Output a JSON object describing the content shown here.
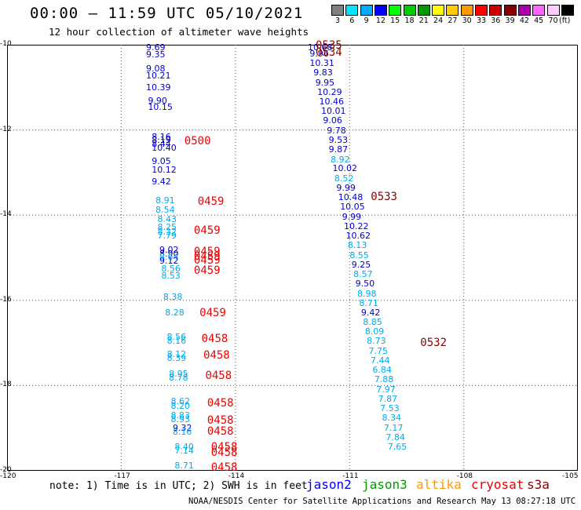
{
  "header": {
    "title": "00:00 – 11:59 UTC 05/10/2021",
    "subtitle": "12 hour collection of altimeter wave heights"
  },
  "colorbar": {
    "unit": "(ft)",
    "bins": [
      {
        "label": "3",
        "color": "#808080"
      },
      {
        "label": "6",
        "color": "#00e5ff"
      },
      {
        "label": "9",
        "color": "#00aaff"
      },
      {
        "label": "12",
        "color": "#0000ff"
      },
      {
        "label": "15",
        "color": "#00ff00"
      },
      {
        "label": "18",
        "color": "#00cc00"
      },
      {
        "label": "21",
        "color": "#009900"
      },
      {
        "label": "24",
        "color": "#ffff00"
      },
      {
        "label": "27",
        "color": "#ffcc00"
      },
      {
        "label": "30",
        "color": "#ff9900"
      },
      {
        "label": "33",
        "color": "#ff0000"
      },
      {
        "label": "36",
        "color": "#cc0000"
      },
      {
        "label": "39",
        "color": "#880000"
      },
      {
        "label": "42",
        "color": "#aa00aa"
      },
      {
        "label": "45",
        "color": "#ff66ff"
      },
      {
        "label": "70",
        "color": "#ffccff"
      },
      {
        "label": "",
        "color": "#000000"
      }
    ]
  },
  "axes": {
    "lon_ticks": [
      "-120",
      "-117",
      "-114",
      "-111",
      "-108",
      "-105"
    ],
    "lat_ticks": [
      "-10",
      "-12",
      "-14",
      "-16",
      "-18",
      "-20"
    ],
    "xlim": [
      -120,
      -105
    ],
    "ylim": [
      -20,
      -10
    ]
  },
  "observations": [
    {
      "lon": -116.1,
      "lat": -10.05,
      "v": "9.69",
      "sat": "jason2"
    },
    {
      "lon": -116.1,
      "lat": -10.22,
      "v": "9.35",
      "sat": "jason2"
    },
    {
      "lon": -116.1,
      "lat": -10.55,
      "v": "9.08",
      "sat": "jason2"
    },
    {
      "lon": -116.1,
      "lat": -10.72,
      "v": "10.21",
      "sat": "jason2"
    },
    {
      "lon": -116.1,
      "lat": -11.0,
      "v": "10.39",
      "sat": "jason2"
    },
    {
      "lon": -116.05,
      "lat": -11.3,
      "v": "9.90",
      "sat": "jason2"
    },
    {
      "lon": -116.05,
      "lat": -11.45,
      "v": "10.15",
      "sat": "jason2"
    },
    {
      "lon": -115.95,
      "lat": -12.15,
      "v": "8.16",
      "sat": "jason2"
    },
    {
      "lon": -115.95,
      "lat": -12.23,
      "v": "8.19",
      "sat": "jason2"
    },
    {
      "lon": -115.95,
      "lat": -12.32,
      "v": "8.44",
      "sat": "jason2"
    },
    {
      "lon": -115.95,
      "lat": -12.42,
      "v": "10.40",
      "sat": "jason2"
    },
    {
      "lon": -115.95,
      "lat": -12.73,
      "v": "9.05",
      "sat": "jason2"
    },
    {
      "lon": -115.95,
      "lat": -12.93,
      "v": "10.12",
      "sat": "jason2"
    },
    {
      "lon": -115.95,
      "lat": -13.2,
      "v": "9.42",
      "sat": "jason2"
    },
    {
      "lon": -115.85,
      "lat": -13.65,
      "v": "8.91",
      "sat": "jason3"
    },
    {
      "lon": -115.85,
      "lat": -13.87,
      "v": "8.54",
      "sat": "jason3"
    },
    {
      "lon": -115.8,
      "lat": -14.08,
      "v": "8.43",
      "sat": "jason3"
    },
    {
      "lon": -115.8,
      "lat": -14.28,
      "v": "8.25",
      "sat": "jason3"
    },
    {
      "lon": -115.8,
      "lat": -14.38,
      "v": "8.32",
      "sat": "jason3"
    },
    {
      "lon": -115.8,
      "lat": -14.47,
      "v": "7.79",
      "sat": "jason3"
    },
    {
      "lon": -115.75,
      "lat": -14.8,
      "v": "9.02",
      "sat": "jason2"
    },
    {
      "lon": -115.75,
      "lat": -14.9,
      "v": "8.90",
      "sat": "jason2"
    },
    {
      "lon": -115.75,
      "lat": -14.98,
      "v": "8.64",
      "sat": "jason3"
    },
    {
      "lon": -115.75,
      "lat": -15.07,
      "v": "9.12",
      "sat": "jason2"
    },
    {
      "lon": -115.7,
      "lat": -15.25,
      "v": "8.56",
      "sat": "jason3"
    },
    {
      "lon": -115.7,
      "lat": -15.42,
      "v": "8.53",
      "sat": "jason3"
    },
    {
      "lon": -115.65,
      "lat": -15.92,
      "v": "8.38",
      "sat": "jason3"
    },
    {
      "lon": -115.6,
      "lat": -16.28,
      "v": "8.28",
      "sat": "jason3"
    },
    {
      "lon": -115.55,
      "lat": -16.85,
      "v": "8.56",
      "sat": "jason3"
    },
    {
      "lon": -115.55,
      "lat": -16.94,
      "v": "8.16",
      "sat": "jason3"
    },
    {
      "lon": -115.55,
      "lat": -17.25,
      "v": "8.12",
      "sat": "jason3"
    },
    {
      "lon": -115.55,
      "lat": -17.34,
      "v": "8.39",
      "sat": "jason3"
    },
    {
      "lon": -115.5,
      "lat": -17.72,
      "v": "8.95",
      "sat": "jason3"
    },
    {
      "lon": -115.5,
      "lat": -17.8,
      "v": "8.78",
      "sat": "jason3"
    },
    {
      "lon": -115.45,
      "lat": -18.37,
      "v": "8.62",
      "sat": "jason3"
    },
    {
      "lon": -115.45,
      "lat": -18.47,
      "v": "8.20",
      "sat": "jason3"
    },
    {
      "lon": -115.45,
      "lat": -18.7,
      "v": "8.83",
      "sat": "jason3"
    },
    {
      "lon": -115.45,
      "lat": -18.78,
      "v": "8.93",
      "sat": "jason3"
    },
    {
      "lon": -115.4,
      "lat": -18.98,
      "v": "9.32",
      "sat": "jason2"
    },
    {
      "lon": -115.4,
      "lat": -19.08,
      "v": "8.16",
      "sat": "jason3"
    },
    {
      "lon": -115.35,
      "lat": -19.43,
      "v": "8.40",
      "sat": "jason3"
    },
    {
      "lon": -115.35,
      "lat": -19.53,
      "v": "7.14",
      "sat": "jason3"
    },
    {
      "lon": -115.35,
      "lat": -19.87,
      "v": "8.71",
      "sat": "jason3"
    },
    {
      "lon": -111.85,
      "lat": -10.05,
      "v": "10.68",
      "sat": "jason2"
    },
    {
      "lon": -111.8,
      "lat": -10.2,
      "v": "9.96",
      "sat": "jason2"
    },
    {
      "lon": -111.8,
      "lat": -10.43,
      "v": "10.31",
      "sat": "jason2"
    },
    {
      "lon": -111.7,
      "lat": -10.65,
      "v": "9.83",
      "sat": "jason2"
    },
    {
      "lon": -111.65,
      "lat": -10.88,
      "v": "9.95",
      "sat": "jason2"
    },
    {
      "lon": -111.6,
      "lat": -11.1,
      "v": "10.29",
      "sat": "jason2"
    },
    {
      "lon": -111.55,
      "lat": -11.32,
      "v": "10.46",
      "sat": "jason2"
    },
    {
      "lon": -111.5,
      "lat": -11.55,
      "v": "10.01",
      "sat": "jason2"
    },
    {
      "lon": -111.45,
      "lat": -11.77,
      "v": "9.06",
      "sat": "jason2"
    },
    {
      "lon": -111.35,
      "lat": -12.0,
      "v": "9.78",
      "sat": "jason2"
    },
    {
      "lon": -111.3,
      "lat": -12.23,
      "v": "9.53",
      "sat": "jason2"
    },
    {
      "lon": -111.3,
      "lat": -12.45,
      "v": "9.87",
      "sat": "jason2"
    },
    {
      "lon": -111.25,
      "lat": -12.68,
      "v": "8.92",
      "sat": "jason3"
    },
    {
      "lon": -111.2,
      "lat": -12.9,
      "v": "10.02",
      "sat": "jason2"
    },
    {
      "lon": -111.15,
      "lat": -13.13,
      "v": "8.52",
      "sat": "jason3"
    },
    {
      "lon": -111.1,
      "lat": -13.35,
      "v": "9.99",
      "sat": "jason2"
    },
    {
      "lon": -111.05,
      "lat": -13.58,
      "v": "10.48",
      "sat": "jason2"
    },
    {
      "lon": -111.0,
      "lat": -13.8,
      "v": "10.05",
      "sat": "jason2"
    },
    {
      "lon": -110.95,
      "lat": -14.03,
      "v": "9.99",
      "sat": "jason2"
    },
    {
      "lon": -110.9,
      "lat": -14.25,
      "v": "10.22",
      "sat": "jason2"
    },
    {
      "lon": -110.85,
      "lat": -14.48,
      "v": "10.62",
      "sat": "jason2"
    },
    {
      "lon": -110.8,
      "lat": -14.7,
      "v": "8.13",
      "sat": "jason3"
    },
    {
      "lon": -110.75,
      "lat": -14.93,
      "v": "8.55",
      "sat": "jason3"
    },
    {
      "lon": -110.7,
      "lat": -15.15,
      "v": "9.25",
      "sat": "jason2"
    },
    {
      "lon": -110.65,
      "lat": -15.38,
      "v": "8.57",
      "sat": "jason3"
    },
    {
      "lon": -110.6,
      "lat": -15.6,
      "v": "9.50",
      "sat": "jason2"
    },
    {
      "lon": -110.55,
      "lat": -15.83,
      "v": "8.98",
      "sat": "jason3"
    },
    {
      "lon": -110.5,
      "lat": -16.05,
      "v": "8.71",
      "sat": "jason3"
    },
    {
      "lon": -110.45,
      "lat": -16.28,
      "v": "9.42",
      "sat": "jason2"
    },
    {
      "lon": -110.4,
      "lat": -16.5,
      "v": "8.85",
      "sat": "jason3"
    },
    {
      "lon": -110.35,
      "lat": -16.73,
      "v": "8.09",
      "sat": "jason3"
    },
    {
      "lon": -110.3,
      "lat": -16.95,
      "v": "8.73",
      "sat": "jason3"
    },
    {
      "lon": -110.25,
      "lat": -17.18,
      "v": "7.75",
      "sat": "jason3"
    },
    {
      "lon": -110.2,
      "lat": -17.4,
      "v": "7.44",
      "sat": "jason3"
    },
    {
      "lon": -110.15,
      "lat": -17.63,
      "v": "6.84",
      "sat": "jason3"
    },
    {
      "lon": -110.1,
      "lat": -17.85,
      "v": "7.88",
      "sat": "jason3"
    },
    {
      "lon": -110.05,
      "lat": -18.08,
      "v": "7.97",
      "sat": "jason3"
    },
    {
      "lon": -110.0,
      "lat": -18.3,
      "v": "7.87",
      "sat": "jason3"
    },
    {
      "lon": -109.95,
      "lat": -18.53,
      "v": "7.53",
      "sat": "jason3"
    },
    {
      "lon": -109.9,
      "lat": -18.75,
      "v": "8.34",
      "sat": "jason3"
    },
    {
      "lon": -109.85,
      "lat": -18.98,
      "v": "7.17",
      "sat": "jason3"
    },
    {
      "lon": -109.8,
      "lat": -19.2,
      "v": "7.84",
      "sat": "jason3"
    },
    {
      "lon": -109.75,
      "lat": -19.43,
      "v": "7.65",
      "sat": "jason3"
    }
  ],
  "pass_times": [
    {
      "lon": -111.85,
      "lat": -10.02,
      "t": "0535",
      "c": "#880000"
    },
    {
      "lon": -111.85,
      "lat": -10.18,
      "t": "0534",
      "c": "#880000"
    },
    {
      "lon": -110.4,
      "lat": -13.58,
      "t": "0533",
      "c": "#880000"
    },
    {
      "lon": -109.1,
      "lat": -17.0,
      "t": "0532",
      "c": "#880000"
    },
    {
      "lon": -115.3,
      "lat": -12.27,
      "t": "0500",
      "c": "#ee0000"
    },
    {
      "lon": -114.95,
      "lat": -13.68,
      "t": "0459",
      "c": "#ee0000"
    },
    {
      "lon": -115.05,
      "lat": -14.37,
      "t": "0459",
      "c": "#ee0000"
    },
    {
      "lon": -115.05,
      "lat": -14.87,
      "t": "0459",
      "c": "#ee0000"
    },
    {
      "lon": -115.05,
      "lat": -14.97,
      "t": "0459",
      "c": "#ee0000"
    },
    {
      "lon": -115.05,
      "lat": -15.07,
      "t": "0459",
      "c": "#ee0000"
    },
    {
      "lon": -115.05,
      "lat": -15.3,
      "t": "0459",
      "c": "#ee0000"
    },
    {
      "lon": -114.9,
      "lat": -16.3,
      "t": "0459",
      "c": "#ee0000"
    },
    {
      "lon": -114.85,
      "lat": -16.9,
      "t": "0458",
      "c": "#ee0000"
    },
    {
      "lon": -114.8,
      "lat": -17.3,
      "t": "0458",
      "c": "#ee0000"
    },
    {
      "lon": -114.75,
      "lat": -17.77,
      "t": "0458",
      "c": "#ee0000"
    },
    {
      "lon": -114.7,
      "lat": -18.42,
      "t": "0458",
      "c": "#ee0000"
    },
    {
      "lon": -114.7,
      "lat": -18.82,
      "t": "0458",
      "c": "#ee0000"
    },
    {
      "lon": -114.7,
      "lat": -19.07,
      "t": "0458",
      "c": "#ee0000"
    },
    {
      "lon": -114.6,
      "lat": -19.45,
      "t": "0458",
      "c": "#ee0000"
    },
    {
      "lon": -114.6,
      "lat": -19.57,
      "t": "0458",
      "c": "#ee0000"
    },
    {
      "lon": -114.6,
      "lat": -19.92,
      "t": "0458",
      "c": "#ee0000"
    }
  ],
  "sat_colors": {
    "jason2": "#0000cc",
    "jason3": "#00aaee"
  },
  "note": "note: 1) Time is in UTC; 2) SWH is in feet",
  "legend": [
    {
      "label": "jason2",
      "color": "#0000ff"
    },
    {
      "label": "jason3",
      "color": "#009900"
    },
    {
      "label": "altika",
      "color": "#ff9900"
    },
    {
      "label": "cryosat",
      "color": "#ee0000"
    },
    {
      "label": "s3a",
      "color": "#880000"
    }
  ],
  "footer": "NOAA/NESDIS Center for Satellite Applications and Research   May 13 08:27:18 UTC 2021"
}
